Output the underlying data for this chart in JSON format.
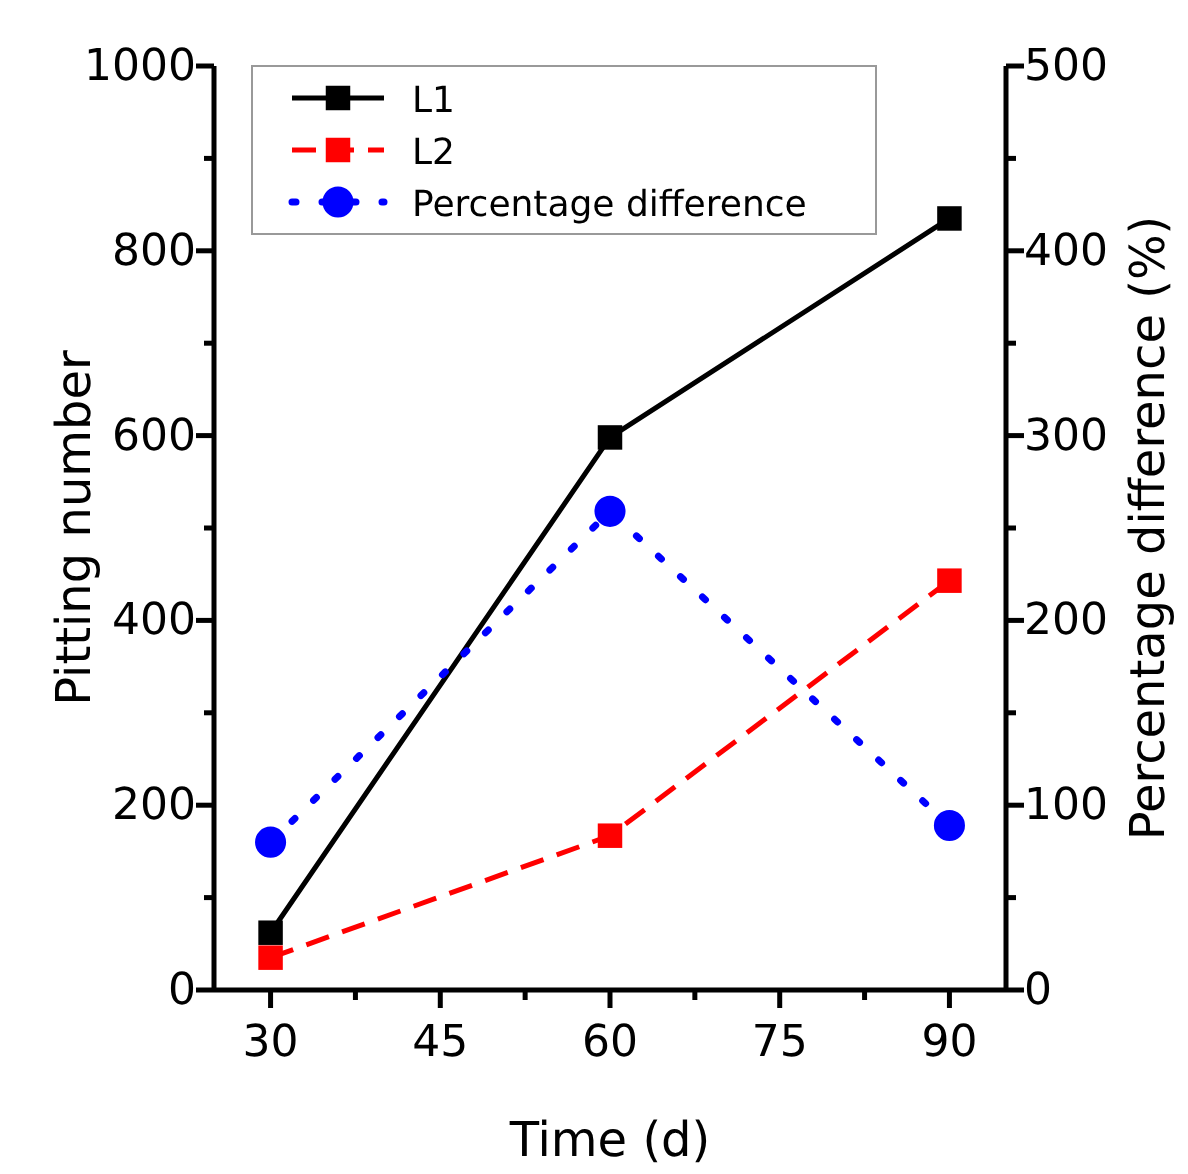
{
  "chart_data": {
    "type": "line",
    "xlabel": "Time (d)",
    "ylabel": "Pitting number",
    "y2label": "Percentage difference (%)",
    "x": [
      30,
      60,
      90
    ],
    "xlim": [
      25,
      95
    ],
    "xticks": [
      30,
      {
        "value": 37.5,
        "label": null
      },
      45,
      {
        "value": 52.5,
        "label": null
      },
      60,
      {
        "value": 67.5,
        "label": null
      },
      75,
      {
        "value": 82.5,
        "label": null
      },
      90
    ],
    "ylim": [
      0,
      1000
    ],
    "yticks": [
      0,
      {
        "value": 100,
        "label": null
      },
      200,
      {
        "value": 300,
        "label": null
      },
      400,
      {
        "value": 500,
        "label": null
      },
      600,
      {
        "value": 700,
        "label": null
      },
      800,
      {
        "value": 900,
        "label": null
      },
      1000
    ],
    "y2lim": [
      0,
      500
    ],
    "y2ticks": [
      0,
      {
        "value": 50,
        "label": null
      },
      100,
      {
        "value": 150,
        "label": null
      },
      200,
      {
        "value": 250,
        "label": null
      },
      300,
      {
        "value": 350,
        "label": null
      },
      400,
      {
        "value": 450,
        "label": null
      },
      500
    ],
    "series": [
      {
        "name": "L1",
        "color": "#000000",
        "values": [
          62,
          598,
          835
        ],
        "marker": "square",
        "line_style": "solid"
      },
      {
        "name": "L2",
        "color": "#ff0000",
        "values": [
          35,
          167,
          443
        ],
        "marker": "square",
        "line_style": "dashed"
      },
      {
        "name": "Percentage difference",
        "color": "#0000ff",
        "values": [
          80,
          259,
          89
        ],
        "marker": "circle",
        "line_style": "dotted",
        "axis": "y2"
      }
    ],
    "legend": "top left",
    "grid": false
  }
}
